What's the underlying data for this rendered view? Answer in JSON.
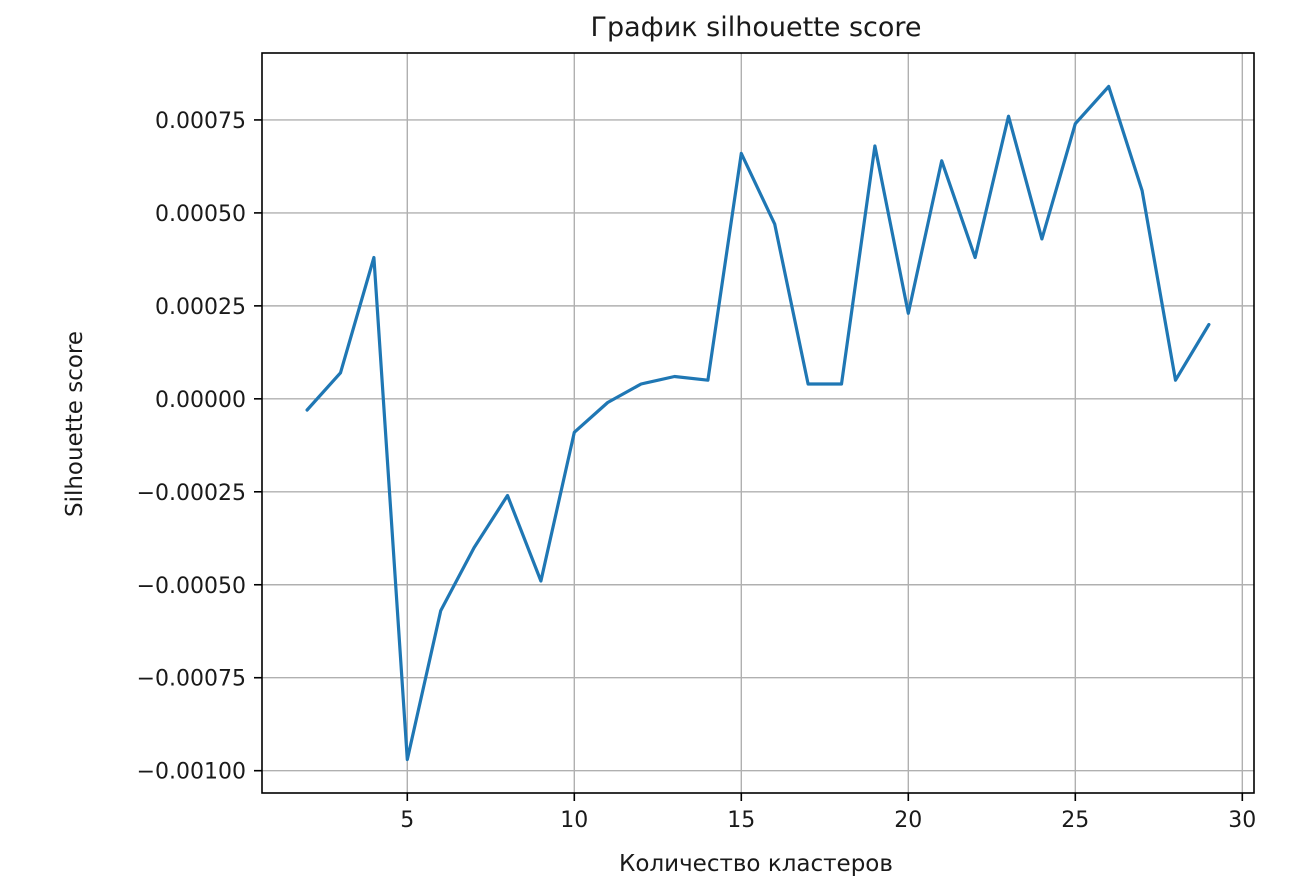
{
  "chart_data": {
    "type": "line",
    "title": "График silhouette score",
    "xlabel": "Количество кластеров",
    "ylabel": "Silhouette score",
    "xlim": [
      0.65,
      30.35
    ],
    "ylim": [
      -0.00106,
      0.00093
    ],
    "x_ticks": [
      5,
      10,
      15,
      20,
      25,
      30
    ],
    "x_tick_labels": [
      "5",
      "10",
      "15",
      "20",
      "25",
      "30"
    ],
    "y_ticks": [
      -0.001,
      -0.00075,
      -0.0005,
      -0.00025,
      0,
      0.00025,
      0.0005,
      0.00075
    ],
    "y_tick_labels": [
      "−0.00100",
      "−0.00075",
      "−0.00050",
      "−0.00025",
      "0.00000",
      "0.00025",
      "0.00050",
      "0.00075"
    ],
    "grid": true,
    "series": [
      {
        "color": "#1f77b4",
        "x": [
          2,
          3,
          4,
          5,
          6,
          7,
          8,
          9,
          10,
          11,
          12,
          13,
          14,
          15,
          16,
          17,
          18,
          19,
          20,
          21,
          22,
          23,
          24,
          25,
          26,
          27,
          28,
          29
        ],
        "y": [
          -3e-05,
          7e-05,
          0.00038,
          -0.00097,
          -0.00057,
          -0.0004,
          -0.00026,
          -0.00049,
          -9e-05,
          -1e-05,
          4e-05,
          6e-05,
          5e-05,
          0.00066,
          0.00047,
          4e-05,
          4e-05,
          0.00068,
          0.00023,
          0.00064,
          0.00038,
          0.00076,
          0.00043,
          0.00074,
          0.00084,
          0.00056,
          5e-05,
          0.0002
        ]
      }
    ]
  }
}
